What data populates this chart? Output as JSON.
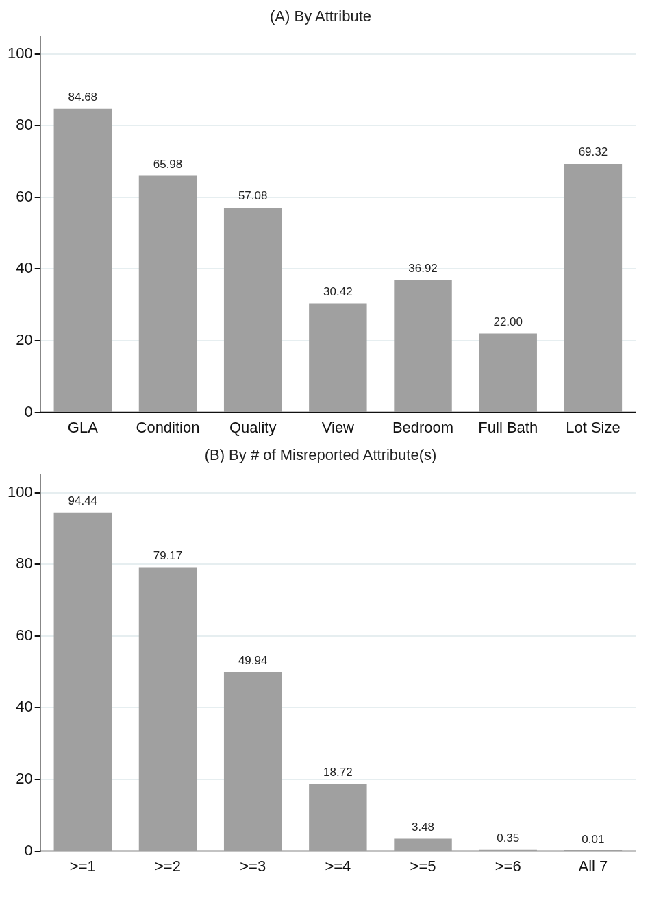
{
  "chart_data": [
    {
      "type": "bar",
      "title": "(A) By Attribute",
      "categories": [
        "GLA",
        "Condition",
        "Quality",
        "View",
        "Bedroom",
        "Full Bath",
        "Lot Size"
      ],
      "values": [
        84.68,
        65.98,
        57.08,
        30.42,
        36.92,
        22.0,
        69.32
      ],
      "value_labels": [
        "84.68",
        "65.98",
        "57.08",
        "30.42",
        "36.92",
        "22.00",
        "69.32"
      ],
      "color": "#a0a0a0",
      "ylim": [
        0,
        105
      ],
      "yticks": [
        0,
        20,
        40,
        60,
        80,
        100
      ],
      "grid": "y"
    },
    {
      "type": "bar",
      "title": "(B) By # of Misreported Attribute(s)",
      "categories": [
        ">=1",
        ">=2",
        ">=3",
        ">=4",
        ">=5",
        ">=6",
        "All 7"
      ],
      "values": [
        94.44,
        79.17,
        49.94,
        18.72,
        3.48,
        0.35,
        0.01
      ],
      "value_labels": [
        "94.44",
        "79.17",
        "49.94",
        "18.72",
        "3.48",
        "0.35",
        "0.01"
      ],
      "color": "#a0a0a0",
      "ylim": [
        0,
        105
      ],
      "yticks": [
        0,
        20,
        40,
        60,
        80,
        100
      ],
      "grid": "y"
    }
  ]
}
